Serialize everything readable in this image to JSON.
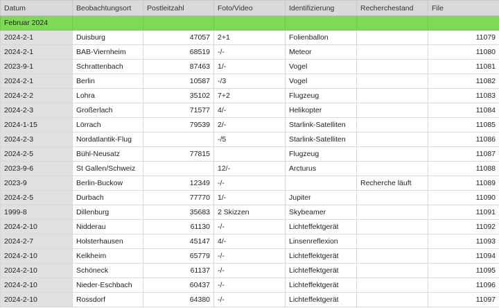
{
  "headers": [
    "Datum",
    "Beobachtungsort",
    "Postleitzahl",
    "Foto/Video",
    "Identifizierung",
    "Recherchestand",
    "File"
  ],
  "group_label": "Februar 2024",
  "colors": {
    "header_bg": "#d9d9d9",
    "group_bg": "#7ed957",
    "date_col_bg": "#e0e0e0"
  },
  "rows": [
    [
      "2024-2-1",
      "Duisburg",
      "47057",
      "2+1",
      "Folienballon",
      "",
      "11079"
    ],
    [
      "2024-2-1",
      "BAB-Viernheim",
      "68519",
      "-/-",
      "Meteor",
      "",
      "11080"
    ],
    [
      "2023-9-1",
      "Schrattenbach",
      "87463",
      "1/-",
      "Vogel",
      "",
      "11081"
    ],
    [
      "2024-2-1",
      "Berlin",
      "10587",
      "-/3",
      "Vogel",
      "",
      "11082"
    ],
    [
      "2024-2-2",
      "Lohra",
      "35102",
      "7+2",
      "Flugzeug",
      "",
      "11083"
    ],
    [
      "2024-2-3",
      "Großerlach",
      "71577",
      "4/-",
      "Helikopter",
      "",
      "11084"
    ],
    [
      "2024-1-15",
      "Lörrach",
      "79539",
      "2/-",
      "Starlink-Satelliten",
      "",
      "11085"
    ],
    [
      "2024-2-3",
      "Nordatlantik-Flug",
      "",
      "-/5",
      "Starlink-Satelliten",
      "",
      "11086"
    ],
    [
      "2024-2-5",
      "Bühl-Neusatz",
      "77815",
      "",
      "Flugzeug",
      "",
      "11087"
    ],
    [
      "2023-9-6",
      "St Gallen/Schweiz",
      "",
      "12/-",
      "Arcturus",
      "",
      "11088"
    ],
    [
      "2023-9",
      "Berlin-Buckow",
      "12349",
      "-/-",
      "",
      "Recherche läuft",
      "11089"
    ],
    [
      "2024-2-5",
      "Durbach",
      "77770",
      "1/-",
      "Jupiter",
      "",
      "11090"
    ],
    [
      "1999-8",
      "Dillenburg",
      "35683",
      "2 Skizzen",
      "Skybeamer",
      "",
      "11091"
    ],
    [
      "2024-2-10",
      "Nidderau",
      "61130",
      "-/-",
      "Lichteffektgerät",
      "",
      "11092"
    ],
    [
      "2024-2-7",
      "Holsterhausen",
      "45147",
      "4/-",
      "Linsenreflexion",
      "",
      "11093"
    ],
    [
      "2024-2-10",
      "Kelkheim",
      "65779",
      "-/-",
      "Lichteffektgerät",
      "",
      "11094"
    ],
    [
      "2024-2-10",
      "Schöneck",
      "61137",
      "-/-",
      "Lichteffektgerät",
      "",
      "11095"
    ],
    [
      "2024-2-10",
      "Nieder-Eschbach",
      "60437",
      "-/-",
      "Lichteffektgerät",
      "",
      "11096"
    ],
    [
      "2024-2-10",
      "Rossdorf",
      "64380",
      "-/-",
      "Lichteffektgerät",
      "",
      "11097"
    ]
  ]
}
